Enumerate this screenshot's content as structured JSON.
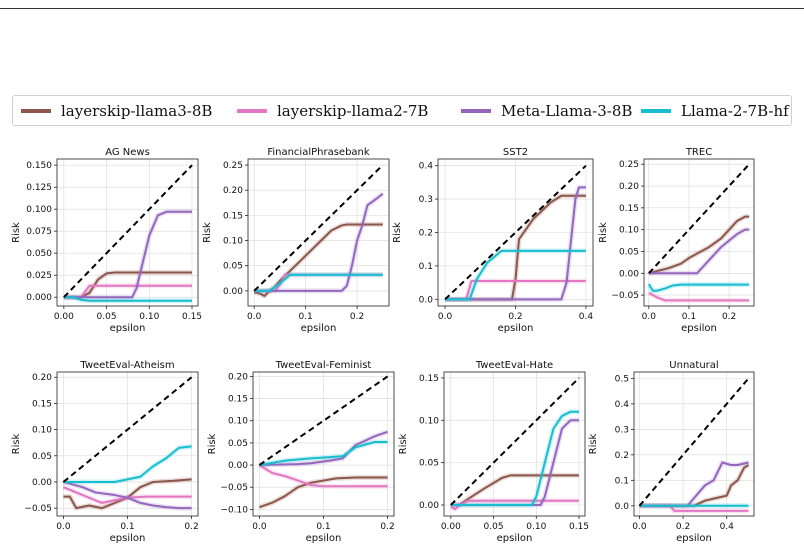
{
  "legend": [
    {
      "name": "layerskip-llama3-8B",
      "color": "#8c564b"
    },
    {
      "name": "layerskip-llama2-7B",
      "color": "#e377c2"
    },
    {
      "name": "Meta-Llama-3-8B",
      "color": "#9467bd"
    },
    {
      "name": "Llama-2-7B-hf",
      "color": "#17becf"
    }
  ],
  "colors": {
    "diagonal": "#000000",
    "grid": "#d9d9d9"
  },
  "chart_data": [
    {
      "type": "line",
      "title": "AG News",
      "xlabel": "epsilon",
      "ylabel": "Risk",
      "xlim": [
        -0.008,
        0.157
      ],
      "ylim": [
        -0.01,
        0.157
      ],
      "xticks": [
        0.0,
        0.05,
        0.1,
        0.15
      ],
      "xticklabels": [
        "0.00",
        "0.05",
        "0.10",
        "0.15"
      ],
      "yticks": [
        0.0,
        0.025,
        0.05,
        0.075,
        0.1,
        0.125,
        0.15
      ],
      "yticklabels": [
        "0.000",
        "0.025",
        "0.050",
        "0.075",
        "0.100",
        "0.125",
        "0.150"
      ],
      "diagonal": [
        [
          0,
          0
        ],
        [
          0.15,
          0.15
        ]
      ],
      "grid": true,
      "series": [
        {
          "name": "layerskip-llama3-8B",
          "x": [
            0,
            0.02,
            0.03,
            0.04,
            0.05,
            0.06,
            0.15
          ],
          "y": [
            0,
            0,
            0.005,
            0.02,
            0.027,
            0.028,
            0.028
          ]
        },
        {
          "name": "layerskip-llama2-7B",
          "x": [
            0,
            0.02,
            0.03,
            0.15
          ],
          "y": [
            0,
            0,
            0.013,
            0.013
          ]
        },
        {
          "name": "Meta-Llama-3-8B",
          "x": [
            0,
            0.07,
            0.08,
            0.085,
            0.09,
            0.1,
            0.11,
            0.12,
            0.15
          ],
          "y": [
            0,
            0,
            0,
            0.01,
            0.03,
            0.07,
            0.093,
            0.097,
            0.097
          ]
        },
        {
          "name": "Llama-2-7B-hf",
          "x": [
            0,
            0.01,
            0.02,
            0.03,
            0.15
          ],
          "y": [
            0,
            0,
            -0.003,
            -0.004,
            -0.004
          ]
        }
      ]
    },
    {
      "type": "line",
      "title": "FinancialPhrasebank",
      "xlabel": "epsilon",
      "ylabel": "Risk",
      "xlim": [
        -0.012,
        0.262
      ],
      "ylim": [
        -0.03,
        0.262
      ],
      "xticks": [
        0.0,
        0.1,
        0.2
      ],
      "xticklabels": [
        "0.0",
        "0.1",
        "0.2"
      ],
      "yticks": [
        0.0,
        0.05,
        0.1,
        0.15,
        0.2,
        0.25
      ],
      "yticklabels": [
        "0.00",
        "0.05",
        "0.10",
        "0.15",
        "0.20",
        "0.25"
      ],
      "diagonal": [
        [
          0,
          0
        ],
        [
          0.25,
          0.25
        ]
      ],
      "grid": true,
      "series": [
        {
          "name": "layerskip-llama3-8B",
          "x": [
            0,
            0.01,
            0.02,
            0.03,
            0.04,
            0.05,
            0.1,
            0.15,
            0.17,
            0.18,
            0.2,
            0.25
          ],
          "y": [
            -0.003,
            -0.005,
            -0.01,
            0,
            0.008,
            0.02,
            0.07,
            0.12,
            0.13,
            0.132,
            0.132,
            0.132
          ]
        },
        {
          "name": "layerskip-llama2-7B",
          "x": [
            0,
            0.04,
            0.05,
            0.06,
            0.25
          ],
          "y": [
            0,
            0,
            0.012,
            0.032,
            0.032
          ]
        },
        {
          "name": "Meta-Llama-3-8B",
          "x": [
            0,
            0.17,
            0.18,
            0.19,
            0.2,
            0.21,
            0.22,
            0.24,
            0.25
          ],
          "y": [
            0,
            0,
            0.01,
            0.05,
            0.1,
            0.13,
            0.17,
            0.185,
            0.193
          ]
        },
        {
          "name": "Llama-2-7B-hf",
          "x": [
            0,
            0.03,
            0.05,
            0.07,
            0.25
          ],
          "y": [
            0,
            0,
            0.015,
            0.032,
            0.032
          ]
        }
      ]
    },
    {
      "type": "line",
      "title": "SST2",
      "xlabel": "epsilon",
      "ylabel": "Risk",
      "xlim": [
        -0.02,
        0.42
      ],
      "ylim": [
        -0.02,
        0.42
      ],
      "xticks": [
        0.0,
        0.2,
        0.4
      ],
      "xticklabels": [
        "0.0",
        "0.2",
        "0.4"
      ],
      "yticks": [
        0.0,
        0.1,
        0.2,
        0.3,
        0.4
      ],
      "yticklabels": [
        "0.0",
        "0.1",
        "0.2",
        "0.3",
        "0.4"
      ],
      "diagonal": [
        [
          0,
          0
        ],
        [
          0.4,
          0.4
        ]
      ],
      "grid": true,
      "series": [
        {
          "name": "layerskip-llama3-8B",
          "x": [
            0,
            0.19,
            0.2,
            0.21,
            0.25,
            0.3,
            0.33,
            0.4
          ],
          "y": [
            0,
            0,
            0.06,
            0.18,
            0.24,
            0.29,
            0.31,
            0.31
          ]
        },
        {
          "name": "layerskip-llama2-7B",
          "x": [
            0,
            0.06,
            0.075,
            0.4
          ],
          "y": [
            0,
            0,
            0.055,
            0.055
          ]
        },
        {
          "name": "Meta-Llama-3-8B",
          "x": [
            0,
            0.33,
            0.345,
            0.355,
            0.37,
            0.38,
            0.4
          ],
          "y": [
            0,
            0,
            0.05,
            0.15,
            0.3,
            0.335,
            0.335
          ]
        },
        {
          "name": "Llama-2-7B-hf",
          "x": [
            0,
            0.07,
            0.09,
            0.12,
            0.16,
            0.4
          ],
          "y": [
            0,
            0,
            0.06,
            0.11,
            0.145,
            0.145
          ]
        }
      ]
    },
    {
      "type": "line",
      "title": "TREC",
      "xlabel": "epsilon",
      "ylabel": "Risk",
      "xlim": [
        -0.012,
        0.262
      ],
      "ylim": [
        -0.075,
        0.262
      ],
      "xticks": [
        0.0,
        0.1,
        0.2
      ],
      "xticklabels": [
        "0.0",
        "0.1",
        "0.2"
      ],
      "yticks": [
        -0.05,
        0.0,
        0.05,
        0.1,
        0.15,
        0.2,
        0.25
      ],
      "yticklabels": [
        "−0.05",
        "0.00",
        "0.05",
        "0.10",
        "0.15",
        "0.20",
        "0.25"
      ],
      "diagonal": [
        [
          0,
          0
        ],
        [
          0.25,
          0.25
        ]
      ],
      "grid": true,
      "series": [
        {
          "name": "layerskip-llama3-8B",
          "x": [
            0,
            0.02,
            0.05,
            0.08,
            0.1,
            0.12,
            0.15,
            0.18,
            0.2,
            0.22,
            0.24,
            0.25
          ],
          "y": [
            0,
            0.005,
            0.012,
            0.022,
            0.035,
            0.045,
            0.06,
            0.08,
            0.1,
            0.12,
            0.13,
            0.13
          ]
        },
        {
          "name": "layerskip-llama2-7B",
          "x": [
            0,
            0.02,
            0.04,
            0.06,
            0.25
          ],
          "y": [
            -0.045,
            -0.055,
            -0.062,
            -0.062,
            -0.062
          ]
        },
        {
          "name": "Meta-Llama-3-8B",
          "x": [
            0,
            0.12,
            0.14,
            0.16,
            0.18,
            0.2,
            0.22,
            0.24,
            0.25
          ],
          "y": [
            0,
            0,
            0.02,
            0.04,
            0.06,
            0.075,
            0.09,
            0.1,
            0.1
          ]
        },
        {
          "name": "Llama-2-7B-hf",
          "x": [
            0,
            0.01,
            0.02,
            0.04,
            0.06,
            0.08,
            0.25
          ],
          "y": [
            -0.025,
            -0.04,
            -0.04,
            -0.035,
            -0.028,
            -0.026,
            -0.026
          ]
        }
      ]
    },
    {
      "type": "line",
      "title": "TweetEval-Atheism",
      "xlabel": "epsilon",
      "ylabel": "Risk",
      "xlim": [
        -0.01,
        0.21
      ],
      "ylim": [
        -0.065,
        0.21
      ],
      "xticks": [
        0.0,
        0.1,
        0.2
      ],
      "xticklabels": [
        "0.0",
        "0.1",
        "0.2"
      ],
      "yticks": [
        -0.05,
        0.0,
        0.05,
        0.1,
        0.15,
        0.2
      ],
      "yticklabels": [
        "−0.05",
        "0.00",
        "0.05",
        "0.10",
        "0.15",
        "0.20"
      ],
      "diagonal": [
        [
          0,
          0
        ],
        [
          0.2,
          0.2
        ]
      ],
      "grid": true,
      "series": [
        {
          "name": "layerskip-llama3-8B",
          "x": [
            0,
            0.01,
            0.02,
            0.04,
            0.06,
            0.08,
            0.1,
            0.12,
            0.14,
            0.17,
            0.2
          ],
          "y": [
            -0.028,
            -0.028,
            -0.05,
            -0.045,
            -0.05,
            -0.04,
            -0.03,
            -0.01,
            0,
            0.002,
            0.005
          ]
        },
        {
          "name": "layerskip-llama2-7B",
          "x": [
            0,
            0.02,
            0.04,
            0.06,
            0.08,
            0.1,
            0.13,
            0.2
          ],
          "y": [
            -0.01,
            -0.02,
            -0.03,
            -0.04,
            -0.035,
            -0.03,
            -0.028,
            -0.028
          ]
        },
        {
          "name": "Meta-Llama-3-8B",
          "x": [
            0,
            0.03,
            0.05,
            0.08,
            0.1,
            0.12,
            0.14,
            0.16,
            0.18,
            0.2
          ],
          "y": [
            0,
            -0.01,
            -0.02,
            -0.025,
            -0.03,
            -0.04,
            -0.045,
            -0.048,
            -0.05,
            -0.05
          ]
        },
        {
          "name": "Llama-2-7B-hf",
          "x": [
            0,
            0.08,
            0.12,
            0.14,
            0.16,
            0.18,
            0.2
          ],
          "y": [
            0,
            0,
            0.01,
            0.03,
            0.045,
            0.065,
            0.068
          ]
        }
      ]
    },
    {
      "type": "line",
      "title": "TweetEval-Feminist",
      "xlabel": "epsilon",
      "ylabel": "Risk",
      "xlim": [
        -0.01,
        0.21
      ],
      "ylim": [
        -0.115,
        0.21
      ],
      "xticks": [
        0.0,
        0.1,
        0.2
      ],
      "xticklabels": [
        "0.0",
        "0.1",
        "0.2"
      ],
      "yticks": [
        -0.1,
        -0.05,
        0.0,
        0.05,
        0.1,
        0.15,
        0.2
      ],
      "yticklabels": [
        "−0.10",
        "−0.05",
        "0.00",
        "0.05",
        "0.10",
        "0.15",
        "0.20"
      ],
      "diagonal": [
        [
          0,
          0
        ],
        [
          0.2,
          0.2
        ]
      ],
      "grid": true,
      "series": [
        {
          "name": "layerskip-llama3-8B",
          "x": [
            0,
            0.02,
            0.04,
            0.06,
            0.08,
            0.1,
            0.12,
            0.15,
            0.2
          ],
          "y": [
            -0.095,
            -0.085,
            -0.07,
            -0.05,
            -0.04,
            -0.035,
            -0.03,
            -0.028,
            -0.028
          ]
        },
        {
          "name": "layerskip-llama2-7B",
          "x": [
            0,
            0.02,
            0.04,
            0.06,
            0.08,
            0.1,
            0.2
          ],
          "y": [
            0,
            -0.018,
            -0.025,
            -0.035,
            -0.045,
            -0.048,
            -0.048
          ]
        },
        {
          "name": "Meta-Llama-3-8B",
          "x": [
            0,
            0.06,
            0.08,
            0.11,
            0.13,
            0.15,
            0.18,
            0.2
          ],
          "y": [
            0,
            0.002,
            0.004,
            0.01,
            0.015,
            0.045,
            0.065,
            0.075
          ]
        },
        {
          "name": "Llama-2-7B-hf",
          "x": [
            0,
            0.04,
            0.08,
            0.11,
            0.13,
            0.15,
            0.18,
            0.2
          ],
          "y": [
            0,
            0.01,
            0.015,
            0.018,
            0.02,
            0.04,
            0.052,
            0.052
          ]
        }
      ]
    },
    {
      "type": "line",
      "title": "TweetEval-Hate",
      "xlabel": "epsilon",
      "ylabel": "Risk",
      "xlim": [
        -0.008,
        0.157
      ],
      "ylim": [
        -0.013,
        0.157
      ],
      "xticks": [
        0.0,
        0.05,
        0.1,
        0.15
      ],
      "xticklabels": [
        "0.00",
        "0.05",
        "0.10",
        "0.15"
      ],
      "yticks": [
        0.0,
        0.05,
        0.1,
        0.15
      ],
      "yticklabels": [
        "0.00",
        "0.05",
        "0.10",
        "0.15"
      ],
      "diagonal": [
        [
          0,
          0
        ],
        [
          0.15,
          0.15
        ]
      ],
      "grid": true,
      "series": [
        {
          "name": "layerskip-llama3-8B",
          "x": [
            0,
            0.01,
            0.02,
            0.04,
            0.06,
            0.07,
            0.15
          ],
          "y": [
            0,
            0,
            0.007,
            0.02,
            0.032,
            0.035,
            0.035
          ]
        },
        {
          "name": "layerskip-llama2-7B",
          "x": [
            0,
            0.005,
            0.01,
            0.02,
            0.15
          ],
          "y": [
            -0.002,
            -0.005,
            0,
            0.005,
            0.005
          ]
        },
        {
          "name": "Meta-Llama-3-8B",
          "x": [
            0,
            0.105,
            0.11,
            0.12,
            0.13,
            0.14,
            0.15
          ],
          "y": [
            0,
            0,
            0.01,
            0.05,
            0.09,
            0.1,
            0.1
          ]
        },
        {
          "name": "Llama-2-7B-hf",
          "x": [
            0,
            0.095,
            0.1,
            0.11,
            0.12,
            0.13,
            0.14,
            0.15
          ],
          "y": [
            0,
            0,
            0.01,
            0.05,
            0.09,
            0.105,
            0.11,
            0.11
          ]
        }
      ]
    },
    {
      "type": "line",
      "title": "Unnatural",
      "xlabel": "epsilon",
      "ylabel": "Risk",
      "xlim": [
        -0.025,
        0.525
      ],
      "ylim": [
        -0.04,
        0.525
      ],
      "xticks": [
        0.0,
        0.2,
        0.4
      ],
      "xticklabels": [
        "0.0",
        "0.2",
        "0.4"
      ],
      "yticks": [
        0.0,
        0.1,
        0.2,
        0.3,
        0.4,
        0.5
      ],
      "yticklabels": [
        "0.0",
        "0.1",
        "0.2",
        "0.3",
        "0.4",
        "0.5"
      ],
      "diagonal": [
        [
          0,
          0
        ],
        [
          0.5,
          0.5
        ]
      ],
      "grid": true,
      "series": [
        {
          "name": "layerskip-llama3-8B",
          "x": [
            0,
            0.25,
            0.3,
            0.35,
            0.4,
            0.42,
            0.45,
            0.48,
            0.5
          ],
          "y": [
            0,
            0,
            0.02,
            0.03,
            0.04,
            0.08,
            0.1,
            0.15,
            0.16
          ]
        },
        {
          "name": "layerskip-llama2-7B",
          "x": [
            0,
            0.14,
            0.16,
            0.2,
            0.25,
            0.5
          ],
          "y": [
            0,
            0,
            -0.02,
            -0.02,
            -0.02,
            -0.02
          ]
        },
        {
          "name": "Meta-Llama-3-8B",
          "x": [
            0,
            0.22,
            0.26,
            0.3,
            0.34,
            0.38,
            0.42,
            0.45,
            0.5
          ],
          "y": [
            0,
            0,
            0.04,
            0.08,
            0.1,
            0.17,
            0.16,
            0.16,
            0.17
          ]
        },
        {
          "name": "Llama-2-7B-hf",
          "x": [
            0,
            0.5
          ],
          "y": [
            0,
            0
          ]
        }
      ]
    }
  ]
}
